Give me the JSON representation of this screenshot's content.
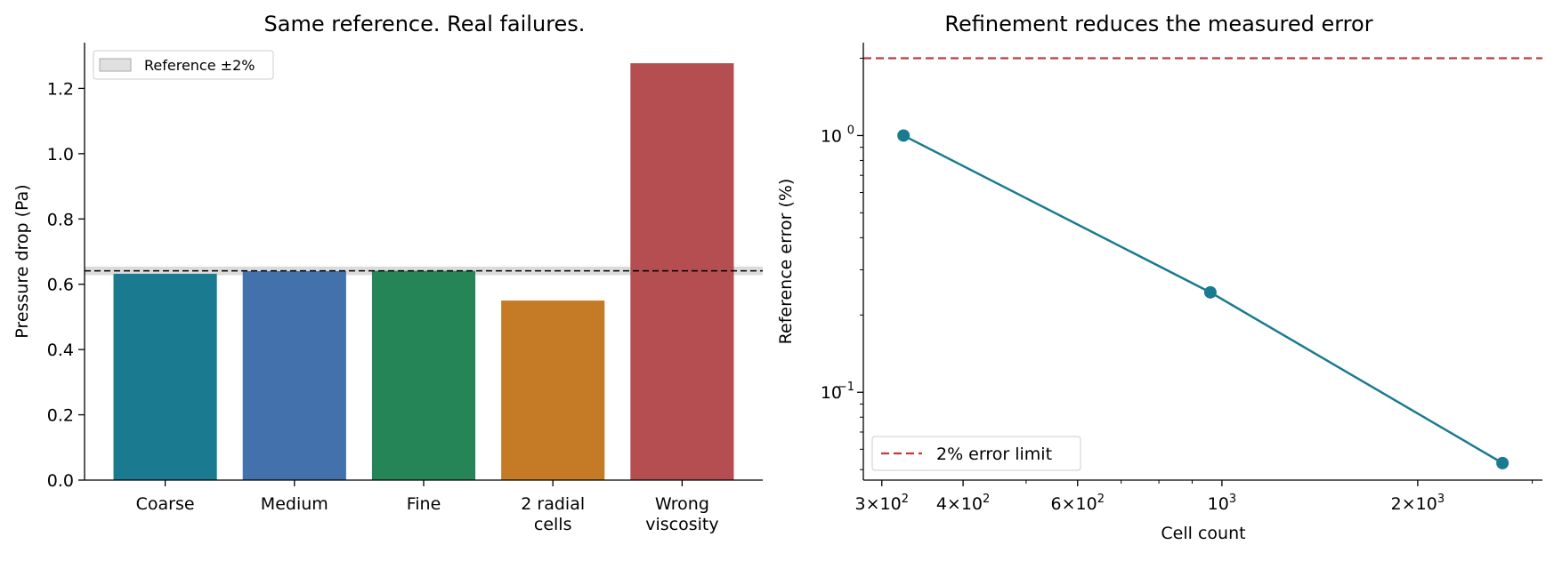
{
  "chart_data": [
    {
      "type": "bar",
      "title": "Same reference. Real failures.",
      "xlabel": "",
      "ylabel": "Pressure drop (Pa)",
      "categories": [
        [
          "Coarse"
        ],
        [
          "Medium"
        ],
        [
          "Fine"
        ],
        [
          "2 radial",
          "cells"
        ],
        [
          "Wrong",
          "viscosity"
        ]
      ],
      "values": [
        0.632,
        0.64,
        0.641,
        0.55,
        1.277
      ],
      "colors": [
        "#1a7b90",
        "#4271ab",
        "#268556",
        "#c57b26",
        "#b54e50"
      ],
      "ylim": [
        0,
        1.34
      ],
      "yticks": [
        {
          "v": 0.0,
          "label": "0.0"
        },
        {
          "v": 0.2,
          "label": "0.2"
        },
        {
          "v": 0.4,
          "label": "0.4"
        },
        {
          "v": 0.6,
          "label": "0.6"
        },
        {
          "v": 0.8,
          "label": "0.8"
        },
        {
          "v": 1.0,
          "label": "1.0"
        },
        {
          "v": 1.2,
          "label": "1.2"
        }
      ],
      "reference": {
        "value": 0.641,
        "band": [
          0.628,
          0.654
        ],
        "label": "Reference ±2%",
        "band_color": "#cccccc"
      },
      "legend": "top-left",
      "grid": false
    },
    {
      "type": "line",
      "title": "Refinement reduces the measured error",
      "xlabel": "Cell count",
      "ylabel": "Reference error (%)",
      "x_scale": "log",
      "y_scale": "log",
      "xlim": [
        281,
        3110
      ],
      "ylim": [
        0.0455,
        2.3
      ],
      "series": [
        {
          "x": [
            324,
            960,
            2700
          ],
          "y": [
            1.0,
            0.245,
            0.053
          ],
          "color": "#1a7b90",
          "marker": "o"
        }
      ],
      "limit_line": {
        "value": 2.0,
        "label": "2% error limit",
        "color": "#c03c3c",
        "style": "dashed"
      },
      "xticks": [
        {
          "v": 300,
          "m": "3",
          "e": "2"
        },
        {
          "v": 400,
          "m": "4",
          "e": "2"
        },
        {
          "v": 600,
          "m": "6",
          "e": "2"
        },
        {
          "v": 1000,
          "m": "",
          "e": "3"
        },
        {
          "v": 2000,
          "m": "2",
          "e": "3"
        }
      ],
      "yticks": [
        {
          "v": 1.0,
          "e": "0"
        },
        {
          "v": 0.1,
          "e": "−1"
        }
      ],
      "legend": "bottom-left",
      "grid": false
    }
  ]
}
